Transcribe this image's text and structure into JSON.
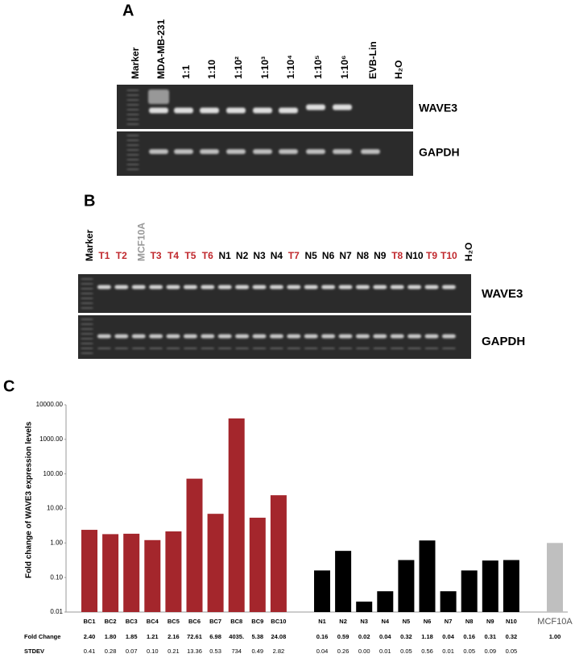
{
  "panel_a": {
    "label": "A",
    "lanes": [
      "Marker",
      "MDA-MB-231",
      "1:1",
      "1:10",
      "1:10²",
      "1:10³",
      "1:10⁴",
      "1:10⁵",
      "1:10⁶",
      "EVB-Lin",
      "H₂O"
    ],
    "bands": [
      "WAVE3",
      "GAPDH"
    ]
  },
  "panel_b": {
    "label": "B",
    "lanes": [
      {
        "label": "Marker",
        "color": "#000000",
        "rotated": true
      },
      {
        "label": "T1",
        "color": "#c0282d"
      },
      {
        "label": "T2",
        "color": "#c0282d"
      },
      {
        "label": "MCF10A",
        "color": "#999999",
        "rotated": true
      },
      {
        "label": "T3",
        "color": "#c0282d"
      },
      {
        "label": "T4",
        "color": "#c0282d"
      },
      {
        "label": "T5",
        "color": "#c0282d"
      },
      {
        "label": "T6",
        "color": "#c0282d"
      },
      {
        "label": "N1",
        "color": "#000000"
      },
      {
        "label": "N2",
        "color": "#000000"
      },
      {
        "label": "N3",
        "color": "#000000"
      },
      {
        "label": "N4",
        "color": "#000000"
      },
      {
        "label": "T7",
        "color": "#c0282d"
      },
      {
        "label": "N5",
        "color": "#000000"
      },
      {
        "label": "N6",
        "color": "#000000"
      },
      {
        "label": "N7",
        "color": "#000000"
      },
      {
        "label": "N8",
        "color": "#000000"
      },
      {
        "label": "N9",
        "color": "#000000"
      },
      {
        "label": "T8",
        "color": "#c0282d"
      },
      {
        "label": "N10",
        "color": "#000000"
      },
      {
        "label": "T9",
        "color": "#c0282d"
      },
      {
        "label": "T10",
        "color": "#c0282d"
      },
      {
        "label": "H₂O",
        "color": "#000000",
        "rotated": true
      }
    ],
    "bands": [
      "WAVE3",
      "GAPDH"
    ]
  },
  "chart_data": {
    "type": "bar",
    "label": "C",
    "y_label": "Fold change of WAVE3  expression levels",
    "log_scale": true,
    "categories": [
      "BC1",
      "BC2",
      "BC3",
      "BC4",
      "BC5",
      "BC6",
      "BC7",
      "BC8",
      "BC9",
      "BC10",
      "N1",
      "N2",
      "N3",
      "N4",
      "N5",
      "N6",
      "N7",
      "N8",
      "N9",
      "N10",
      "MCF10A"
    ],
    "values": [
      2.4,
      1.8,
      1.85,
      1.21,
      2.16,
      72.61,
      6.98,
      4035,
      5.38,
      24.08,
      0.16,
      0.59,
      0.02,
      0.04,
      0.32,
      1.18,
      0.04,
      0.16,
      0.31,
      0.32,
      1.0
    ],
    "value_labels": [
      "2.40",
      "1.80",
      "1.85",
      "1.21",
      "2.16",
      "72.61",
      "6.98",
      "4035.",
      "5.38",
      "24.08",
      "0.16",
      "0.59",
      "0.02",
      "0.04",
      "0.32",
      "1.18",
      "0.04",
      "0.16",
      "0.31",
      "0.32",
      "1.00"
    ],
    "colors": [
      "#a4262c",
      "#a4262c",
      "#a4262c",
      "#a4262c",
      "#a4262c",
      "#a4262c",
      "#a4262c",
      "#a4262c",
      "#a4262c",
      "#a4262c",
      "#000000",
      "#000000",
      "#000000",
      "#000000",
      "#000000",
      "#000000",
      "#000000",
      "#000000",
      "#000000",
      "#000000",
      "#bfbfbf"
    ],
    "stdev": [
      "0.41",
      "0.28",
      "0.07",
      "0.10",
      "0.21",
      "13.36",
      "0.53",
      "734",
      "0.49",
      "2.82",
      "0.04",
      "0.26",
      "0.00",
      "0.01",
      "0.05",
      "0.56",
      "0.01",
      "0.05",
      "0.09",
      "0.05",
      ""
    ],
    "row_labels": [
      "Fold Change",
      "STDEV"
    ],
    "ylim": [
      0.01,
      10000
    ],
    "yticks": [
      {
        "value": 0.01,
        "label": "0.01"
      },
      {
        "value": 0.1,
        "label": "0.10"
      },
      {
        "value": 1,
        "label": "1.00"
      },
      {
        "value": 10,
        "label": "10.00"
      },
      {
        "value": 100,
        "label": "100.00"
      },
      {
        "value": 1000,
        "label": "1000.00"
      },
      {
        "value": 10000,
        "label": "10000.00"
      }
    ]
  }
}
